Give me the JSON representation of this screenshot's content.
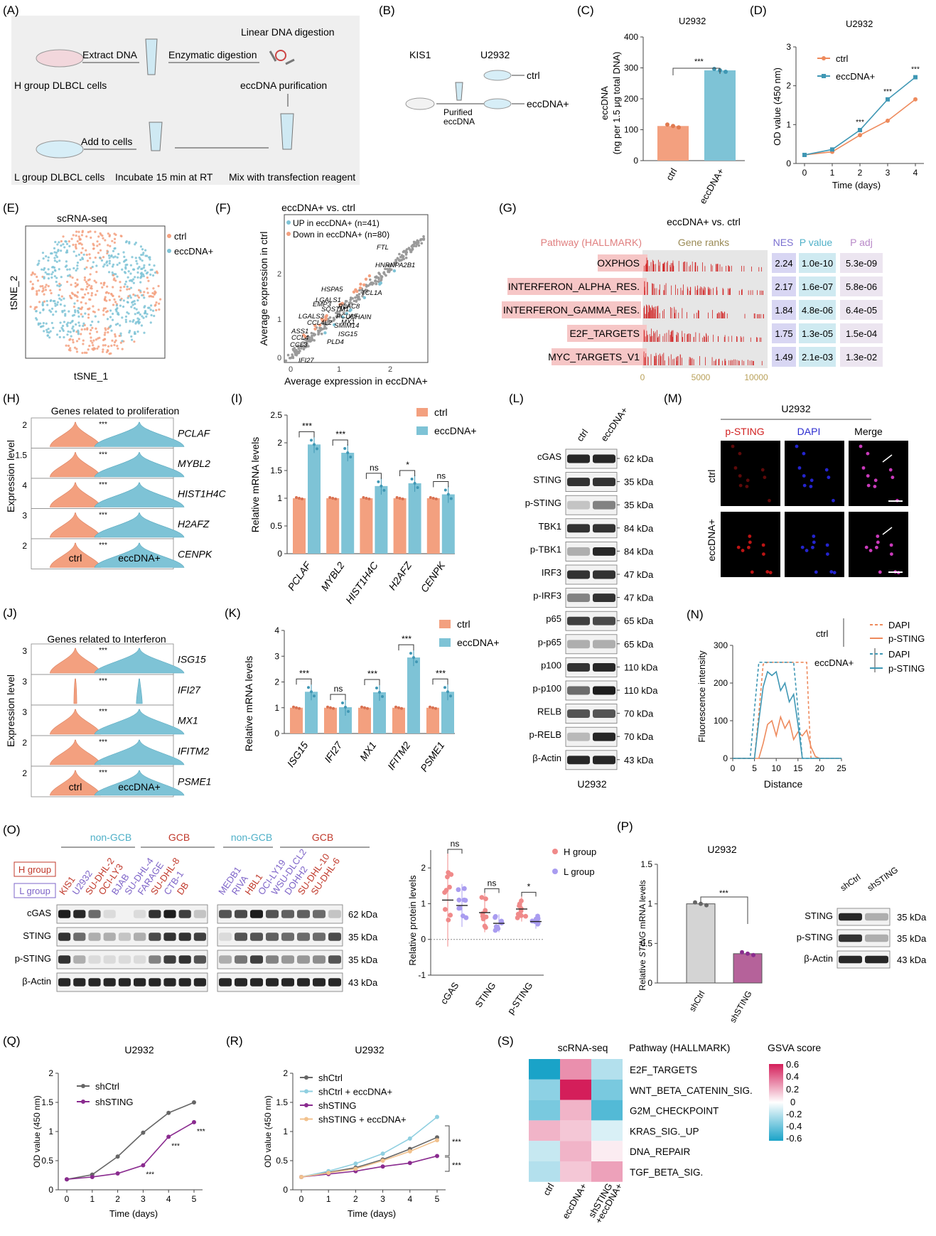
{
  "colors": {
    "orange": "#f3a07f",
    "blue": "#7ec3d6",
    "blue_dark": "#3f97b4",
    "orange_line": "#ee8a5c",
    "purple": "#8a2b8f",
    "gray_line": "#666666",
    "pink": "#f7c9c0",
    "red": "#c0392b",
    "violet": "#7e64c8"
  },
  "panels": {
    "A": "(A)",
    "B": "(B)",
    "C": "(C)",
    "D": "(D)",
    "E": "(E)",
    "F": "(F)",
    "G": "(G)",
    "H": "(H)",
    "I": "(I)",
    "J": "(J)",
    "K": "(K)",
    "L": "(L)",
    "M": "(M)",
    "N": "(N)",
    "O": "(O)",
    "P": "(P)",
    "Q": "(Q)",
    "R": "(R)",
    "S": "(S)"
  },
  "A": {
    "extract": "Extract DNA",
    "enzymatic": "Enzymatic digestion",
    "linear": "Linear DNA digestion",
    "h_group": "H group DLBCL cells",
    "purify": "eccDNA purification",
    "add": "Add to cells",
    "l_group": "L group DLBCL cells",
    "incubate": "Incubate 15 min at RT",
    "mix": "Mix with transfection reagent"
  },
  "B": {
    "kis1": "KIS1",
    "u2932": "U2932",
    "ctrl": "ctrl",
    "ecc": "eccDNA+",
    "purified": "Purified",
    "purified2": "eccDNA"
  },
  "C": {
    "title": "U2932",
    "ylabel": "eccDNA",
    "ylabel2": "(ng per 1.5 μg total DNA)",
    "sig": "***"
  },
  "D": {
    "title": "U2932",
    "ylabel": "OD value (450 nm)",
    "xlabel": "Time (days)",
    "sig": "***"
  },
  "E": {
    "title": "scRNA-seq",
    "xlabel": "tSNE_1",
    "ylabel": "tSNE_2",
    "legend_ctrl": "ctrl",
    "legend_ecc": "eccDNA+"
  },
  "F": {
    "title": "eccDNA+  vs. ctrl",
    "xlabel": "Average expression in eccDNA+",
    "ylabel": "Average expression in ctrl",
    "up": "UP in eccDNA+ (n=41)",
    "down": "Down in eccDNA+ (n=80)",
    "genes": [
      "FTL",
      "HNRNPA2B1",
      "LGALS1",
      "HSPA5",
      "TCL1A",
      "EMP3",
      "SQSTM1",
      "PLAC8",
      "PCLAF",
      "JCHAIN",
      "LGALS3",
      "MX1",
      "CCL4L2",
      "SMIM14",
      "ASS1",
      "ISG15",
      "CCL4",
      "PLD4",
      "CCL3",
      "IFI27"
    ]
  },
  "G": {
    "title": "eccDNA+  vs.  ctrl",
    "h_pathway": "Pathway (HALLMARK)",
    "h_ranks": "Gene ranks",
    "h_nes": "NES",
    "h_p": "P value",
    "h_padj": "P adj",
    "rows": [
      {
        "name": "OXPHOS",
        "nes": "2.24",
        "p": "1.0e-10",
        "padj": "5.3e-09"
      },
      {
        "name": "INTERFERON_ALPHA_RES.",
        "nes": "2.17",
        "p": "1.6e-07",
        "padj": "5.8e-06"
      },
      {
        "name": "INTERFERON_GAMMA_RES.",
        "nes": "1.84",
        "p": "4.8e-06",
        "padj": "6.4e-05"
      },
      {
        "name": "E2F_TARGETS",
        "nes": "1.75",
        "p": "1.3e-05",
        "padj": "1.5e-04"
      },
      {
        "name": "MYC_TARGETS_V1",
        "nes": "1.49",
        "p": "2.1e-03",
        "padj": "1.3e-02"
      }
    ],
    "ticks": [
      "0",
      "5000",
      "10000"
    ]
  },
  "H": {
    "title": "Genes related to proliferation",
    "ylabel": "Expression level",
    "xctrl": "ctrl",
    "xecc": "eccDNA+",
    "genes": [
      "PCLAF",
      "MYBL2",
      "HIST1H4C",
      "H2AFZ",
      "CENPK"
    ],
    "yt": [
      "2",
      "1.5",
      "4",
      "3",
      "2"
    ],
    "sig": "***"
  },
  "I": {
    "ylabel": "Relative mRNA levels",
    "legend_ctrl": "ctrl",
    "legend_ecc": "eccDNA+",
    "genes": [
      "PCLAF",
      "MYBL2",
      "HIST1H4C",
      "H2AFZ",
      "CENPK"
    ],
    "sigs": [
      "***",
      "***",
      "ns",
      "*",
      "ns"
    ]
  },
  "J": {
    "title": "Genes related to Interferon",
    "ylabel": "Expression level",
    "xctrl": "ctrl",
    "xecc": "eccDNA+",
    "genes": [
      "ISG15",
      "IFI27",
      "MX1",
      "IFITM2",
      "PSME1"
    ],
    "yt": [
      "3",
      "3",
      "3",
      "2",
      "2"
    ],
    "sig": "***"
  },
  "K": {
    "ylabel": "Relative mRNA levels",
    "legend_ctrl": "ctrl",
    "legend_ecc": "eccDNA+",
    "genes": [
      "ISG15",
      "IFI27",
      "MX1",
      "IFITM2",
      "PSME1"
    ],
    "sigs": [
      "***",
      "ns",
      "***",
      "***",
      "***"
    ]
  },
  "L": {
    "ctrl": "ctrl",
    "ecc": "eccDNA+",
    "cell": "U2932",
    "bands": [
      {
        "name": "cGAS",
        "kda": "62 kDa"
      },
      {
        "name": "STING",
        "kda": "35 kDa"
      },
      {
        "name": "p-STING",
        "kda": "35 kDa"
      },
      {
        "name": "TBK1",
        "kda": "84 kDa"
      },
      {
        "name": "p-TBK1",
        "kda": "84 kDa"
      },
      {
        "name": "IRF3",
        "kda": "47 kDa"
      },
      {
        "name": "p-IRF3",
        "kda": "47 kDa"
      },
      {
        "name": "p65",
        "kda": "65 kDa"
      },
      {
        "name": "p-p65",
        "kda": "65 kDa"
      },
      {
        "name": "p100",
        "kda": "110 kDa"
      },
      {
        "name": "p-p100",
        "kda": "110 kDa"
      },
      {
        "name": "RELB",
        "kda": "70 kDa"
      },
      {
        "name": "p-RELB",
        "kda": "70 kDa"
      },
      {
        "name": "β-Actin",
        "kda": "43 kDa"
      }
    ]
  },
  "M": {
    "title": "U2932",
    "c1": "p-STING",
    "c2": "DAPI",
    "c3": "Merge",
    "r1": "ctrl",
    "r2": "eccDNA+"
  },
  "N": {
    "ylabel": "Fluorescence intensity",
    "xlabel": "Distance",
    "ctrl": "ctrl",
    "ecc": "eccDNA+",
    "dapi": "DAPI",
    "psting": "p-STING"
  },
  "O": {
    "nongcb": "non-GCB",
    "gcb": "GCB",
    "hgroup": "H group",
    "lgroup": "L group",
    "lanes1": [
      {
        "n": "KIS1",
        "g": "H"
      },
      {
        "n": "U2932",
        "g": "L"
      },
      {
        "n": "SU-DHL-2",
        "g": "H"
      },
      {
        "n": "OCI-LY3",
        "g": "H"
      },
      {
        "n": "BJAB",
        "g": "L"
      },
      {
        "n": "SU-DHL-4",
        "g": "L"
      },
      {
        "n": "FARAGE",
        "g": "L"
      },
      {
        "n": "SU-DHL-8",
        "g": "H"
      },
      {
        "n": "CTB-1",
        "g": "L"
      },
      {
        "n": "DB",
        "g": "H"
      }
    ],
    "lanes2": [
      {
        "n": "MEDB1",
        "g": "L"
      },
      {
        "n": "RIVA",
        "g": "L"
      },
      {
        "n": "HBL1",
        "g": "H"
      },
      {
        "n": "OCI-LY19",
        "g": "L"
      },
      {
        "n": "WSU-DLCL2",
        "g": "L"
      },
      {
        "n": "DOHH2",
        "g": "L"
      },
      {
        "n": "SU-DHL-10",
        "g": "H"
      },
      {
        "n": "SU-DHL-6",
        "g": "H"
      }
    ],
    "bands": [
      {
        "name": "cGAS",
        "kda": "62 kDa"
      },
      {
        "name": "STING",
        "kda": "35 kDa"
      },
      {
        "name": "p-STING",
        "kda": "35 kDa"
      },
      {
        "name": "β-Actin",
        "kda": "43 kDa"
      }
    ],
    "ylabel": "Relative protein levels",
    "legend_h": "H group",
    "legend_l": "L group",
    "cats": [
      "cGAS",
      "STING",
      "p-STING"
    ],
    "sigs": [
      "ns",
      "ns",
      "*"
    ]
  },
  "P": {
    "title": "U2932",
    "ylabel": "Relative",
    "ylabel_it": "STING",
    "ylabel2": "mRNA levels",
    "sig": "***",
    "cats": [
      "shCtrl",
      "shSTING"
    ],
    "wb_lanes": [
      "shCtrl",
      "shSTING"
    ],
    "wb_bands": [
      {
        "name": "STING",
        "kda": "35 kDa"
      },
      {
        "name": "p-STING",
        "kda": "35 kDa"
      },
      {
        "name": "β-Actin",
        "kda": "43 kDa"
      }
    ]
  },
  "Q": {
    "title": "U2932",
    "ylabel": "OD value (450 nm)",
    "xlabel": "Time (days)",
    "sig": "***"
  },
  "R": {
    "title": "U2932",
    "ylabel": "OD value (450 nm)",
    "xlabel": "Time (days)",
    "sig": "***"
  },
  "S": {
    "title": "scRNA-seq",
    "header": "Pathway (HALLMARK)",
    "score": "GSVA score",
    "rows": [
      "E2F_TARGETS",
      "WNT_BETA_CATENIN_SIG.",
      "G2M_CHECKPOINT",
      "KRAS_SIG._UP",
      "DNA_REPAIR",
      "TGF_BETA_SIG."
    ],
    "cols": [
      "ctrl",
      "eccDNA+",
      "shSTING",
      "+eccDNA+"
    ],
    "cbar": [
      "0.6",
      "0.4",
      "0.2",
      "0",
      "-0.2",
      "-0.4",
      "-0.6"
    ],
    "values": [
      [
        -0.6,
        0.3,
        -0.2
      ],
      [
        -0.3,
        0.6,
        -0.35
      ],
      [
        -0.35,
        0.2,
        -0.45
      ],
      [
        0.2,
        0.15,
        -0.1
      ],
      [
        -0.15,
        0.2,
        0.05
      ],
      [
        -0.2,
        0.15,
        0.25
      ]
    ]
  },
  "chart_data": [
    {
      "type": "bar",
      "title": "U2932",
      "ylabel": "eccDNA (ng per 1.5 μg total DNA)",
      "categories": [
        "ctrl",
        "eccDNA+"
      ],
      "values": [
        112,
        292
      ],
      "ylim": [
        0,
        400
      ],
      "yticks": [
        0,
        100,
        200,
        300,
        400
      ]
    },
    {
      "type": "line",
      "title": "U2932",
      "xlabel": "Time (days)",
      "ylabel": "OD value (450 nm)",
      "x": [
        0,
        1,
        2,
        3,
        4
      ],
      "ylim": [
        0,
        3
      ],
      "yticks": [
        0,
        1,
        2,
        3
      ],
      "series": [
        {
          "name": "ctrl",
          "values": [
            0.22,
            0.3,
            0.73,
            1.1,
            1.65
          ]
        },
        {
          "name": "eccDNA+",
          "values": [
            0.22,
            0.36,
            0.86,
            1.65,
            2.22
          ]
        }
      ]
    },
    {
      "type": "bar",
      "ylabel": "Relative mRNA levels",
      "categories": [
        "PCLAF",
        "MYBL2",
        "HIST1H4C",
        "H2AFZ",
        "CENPK"
      ],
      "ylim": [
        0,
        2.5
      ],
      "yticks": [
        0,
        0.5,
        1,
        1.5,
        2,
        2.5
      ],
      "series": [
        {
          "name": "ctrl",
          "values": [
            1,
            1,
            1,
            1,
            1
          ]
        },
        {
          "name": "eccDNA+",
          "values": [
            1.97,
            1.82,
            1.22,
            1.27,
            1.07
          ]
        }
      ]
    },
    {
      "type": "bar",
      "ylabel": "Relative mRNA levels",
      "categories": [
        "ISG15",
        "IFI27",
        "MX1",
        "IFITM2",
        "PSME1"
      ],
      "ylim": [
        0,
        4
      ],
      "yticks": [
        0,
        1,
        2,
        3,
        4
      ],
      "series": [
        {
          "name": "ctrl",
          "values": [
            1,
            1,
            1,
            1,
            1
          ]
        },
        {
          "name": "eccDNA+",
          "values": [
            1.62,
            1.02,
            1.6,
            2.95,
            1.62
          ]
        }
      ]
    },
    {
      "type": "line",
      "xlabel": "Distance",
      "ylabel": "Fluorescence intensity",
      "xlim": [
        0,
        25
      ],
      "ylim": [
        0,
        300
      ],
      "xticks": [
        0,
        5,
        10,
        15,
        20,
        25
      ],
      "yticks": [
        0,
        100,
        200,
        300
      ],
      "series": [
        {
          "name": "DAPI",
          "group": "ctrl",
          "x": [
            0,
            5,
            6,
            7,
            8,
            16,
            17,
            17.5,
            18,
            20,
            25
          ],
          "values": [
            0,
            0,
            120,
            250,
            255,
            255,
            255,
            120,
            0,
            0,
            0
          ]
        },
        {
          "name": "p-STING",
          "group": "ctrl",
          "x": [
            0,
            6,
            7,
            8,
            9,
            10,
            11,
            12,
            13,
            14,
            15,
            16,
            17,
            18,
            19,
            20
          ],
          "values": [
            0,
            0,
            40,
            90,
            100,
            60,
            110,
            80,
            100,
            50,
            70,
            60,
            75,
            30,
            5,
            0
          ]
        },
        {
          "name": "DAPI",
          "group": "eccDNA+",
          "x": [
            0,
            4,
            5,
            6,
            14,
            15,
            16,
            25
          ],
          "values": [
            0,
            0,
            130,
            255,
            255,
            130,
            0,
            0
          ]
        },
        {
          "name": "p-STING",
          "group": "eccDNA+",
          "x": [
            0,
            5,
            6,
            7,
            8,
            9,
            10,
            11,
            12,
            13,
            14,
            15,
            16,
            25
          ],
          "values": [
            0,
            0,
            100,
            190,
            230,
            220,
            230,
            180,
            200,
            150,
            170,
            90,
            0,
            0
          ]
        }
      ]
    },
    {
      "type": "scatter",
      "ylabel": "Relative protein levels",
      "categories": [
        "cGAS",
        "STING",
        "p-STING"
      ],
      "ylim": [
        -1,
        2.5
      ],
      "yticks": [
        -1,
        0,
        1,
        2
      ],
      "series": [
        {
          "name": "H group",
          "mean": [
            1.1,
            0.75,
            0.85
          ],
          "sd": [
            1.3,
            0.55,
            0.35
          ]
        },
        {
          "name": "L group",
          "mean": [
            0.95,
            0.45,
            0.5
          ],
          "sd": [
            0.6,
            0.25,
            0.2
          ]
        }
      ]
    },
    {
      "type": "bar",
      "title": "U2932",
      "ylabel": "Relative STING mRNA levels",
      "categories": [
        "shCtrl",
        "shSTING"
      ],
      "values": [
        1.0,
        0.37
      ],
      "ylim": [
        0,
        1.5
      ],
      "yticks": [
        0,
        0.5,
        1.0,
        1.5
      ]
    },
    {
      "type": "line",
      "title": "U2932",
      "xlabel": "Time (days)",
      "ylabel": "OD value (450 nm)",
      "x": [
        0,
        1,
        2,
        3,
        4,
        5
      ],
      "ylim": [
        0,
        2
      ],
      "yticks": [
        0,
        0.5,
        1,
        1.5,
        2
      ],
      "series": [
        {
          "name": "shCtrl",
          "values": [
            0.18,
            0.26,
            0.57,
            0.98,
            1.32,
            1.5
          ]
        },
        {
          "name": "shSTING",
          "values": [
            0.18,
            0.22,
            0.28,
            0.42,
            0.91,
            1.16
          ]
        }
      ]
    },
    {
      "type": "line",
      "title": "U2932",
      "xlabel": "Time (days)",
      "ylabel": "OD value (450 nm)",
      "x": [
        0,
        1,
        2,
        3,
        4,
        5
      ],
      "ylim": [
        0,
        2
      ],
      "yticks": [
        0,
        0.5,
        1,
        1.5,
        2
      ],
      "series": [
        {
          "name": "shCtrl",
          "values": [
            0.22,
            0.3,
            0.38,
            0.52,
            0.7,
            0.9
          ]
        },
        {
          "name": "shCtrl + eccDNA+",
          "values": [
            0.22,
            0.32,
            0.45,
            0.62,
            0.88,
            1.25
          ]
        },
        {
          "name": "shSTING",
          "values": [
            0.22,
            0.27,
            0.32,
            0.4,
            0.46,
            0.58
          ]
        },
        {
          "name": "shSTING + eccDNA+",
          "values": [
            0.22,
            0.29,
            0.36,
            0.5,
            0.66,
            0.85
          ]
        }
      ]
    },
    {
      "type": "heatmap",
      "title": "scRNA-seq",
      "rows": [
        "E2F_TARGETS",
        "WNT_BETA_CATENIN_SIG.",
        "G2M_CHECKPOINT",
        "KRAS_SIG._UP",
        "DNA_REPAIR",
        "TGF_BETA_SIG."
      ],
      "columns": [
        "ctrl",
        "eccDNA+",
        "shSTING +eccDNA+"
      ],
      "values": [
        [
          -0.6,
          0.3,
          -0.2
        ],
        [
          -0.3,
          0.6,
          -0.35
        ],
        [
          -0.35,
          0.2,
          -0.45
        ],
        [
          0.2,
          0.15,
          -0.1
        ],
        [
          -0.15,
          0.2,
          0.05
        ],
        [
          -0.2,
          0.15,
          0.25
        ]
      ],
      "range": [
        -0.6,
        0.6
      ]
    }
  ]
}
